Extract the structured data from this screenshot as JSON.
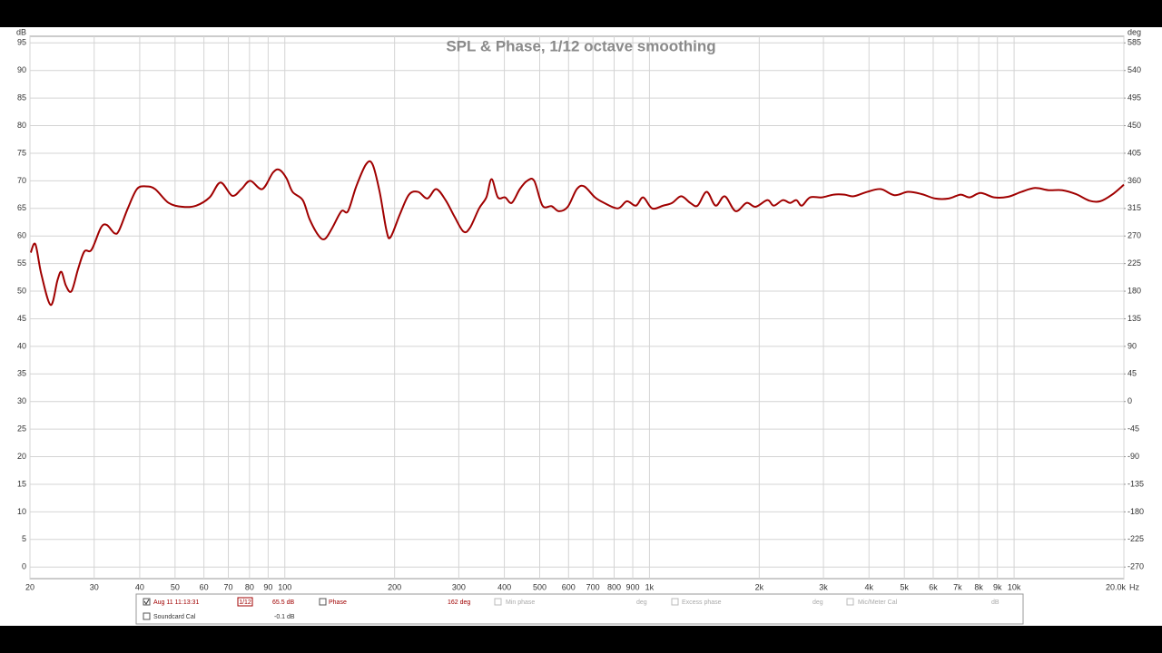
{
  "chart_data": {
    "type": "line",
    "title": "SPL & Phase, 1/12 octave smoothing",
    "y_label": "dB",
    "y2_label": "deg",
    "x_unit": "Hz",
    "log_x": true,
    "grid": true,
    "xlim": [
      20,
      20000
    ],
    "ylim": [
      -2.1,
      96.2
    ],
    "y2lim": [
      -288.9,
      595.8
    ],
    "xticks": [
      20,
      30,
      40,
      50,
      60,
      70,
      80,
      90,
      100,
      200,
      300,
      400,
      500,
      600,
      700,
      800,
      900,
      {
        "value": 1000,
        "label": "1k"
      },
      {
        "value": 2000,
        "label": "2k"
      },
      {
        "value": 3000,
        "label": "3k"
      },
      {
        "value": 4000,
        "label": "4k"
      },
      {
        "value": 5000,
        "label": "5k"
      },
      {
        "value": 6000,
        "label": "6k"
      },
      {
        "value": 7000,
        "label": "7k"
      },
      {
        "value": 8000,
        "label": "8k"
      },
      {
        "value": 9000,
        "label": "9k"
      },
      {
        "value": 10000,
        "label": "10k"
      },
      {
        "value": 20000,
        "label": "20.0k"
      }
    ],
    "yticks": [
      0,
      5,
      10,
      15,
      20,
      25,
      30,
      35,
      40,
      45,
      50,
      55,
      60,
      65,
      70,
      75,
      80,
      85,
      90,
      95
    ],
    "y2ticks": [
      -270,
      -225,
      -180,
      -135,
      -90,
      -45,
      0,
      45,
      90,
      135,
      180,
      225,
      270,
      315,
      360,
      405,
      450,
      495,
      540,
      585
    ],
    "x": [
      20.1,
      20.7,
      21.5,
      22.8,
      23.8,
      24.4,
      25.1,
      26.0,
      27.1,
      28.2,
      29.5,
      31.3,
      32.5,
      34.1,
      35.1,
      37.1,
      39.3,
      41.6,
      44.1,
      48.0,
      52.4,
      57.1,
      62.2,
      66.6,
      71.7,
      76.0,
      80.4,
      86.7,
      92.8,
      96.6,
      101,
      105,
      112,
      117,
      124,
      129,
      135,
      143,
      149,
      157,
      167,
      174,
      182,
      190,
      195,
      207,
      219,
      232,
      246,
      260,
      276,
      292,
      309,
      322,
      341,
      357,
      369,
      384,
      402,
      419,
      441,
      462,
      483,
      509,
      539,
      564,
      597,
      632,
      662,
      709,
      751,
      819,
      867,
      918,
      961,
      1017,
      1090,
      1154,
      1222,
      1294,
      1355,
      1435,
      1519,
      1609,
      1723,
      1846,
      1955,
      2106,
      2192,
      2321,
      2430,
      2529,
      2617,
      2756,
      2970,
      3199,
      3428,
      3630,
      3954,
      4309,
      4696,
      5118,
      5576,
      6076,
      6622,
      7133,
      7554,
      8091,
      8818,
      9608,
      10470,
      11410,
      12430,
      13550,
      14770,
      16090,
      17230,
      18570,
      20000
    ],
    "series": [
      {
        "name": "Aug 11 11:13:31",
        "color": "#a00000",
        "values": [
          57,
          58.5,
          53,
          47.5,
          52,
          53.5,
          51,
          50,
          54,
          57.2,
          57.5,
          61.5,
          62,
          60.5,
          61,
          65,
          68.5,
          69,
          68.5,
          66,
          65.3,
          65.5,
          67,
          69.7,
          67.3,
          68.5,
          70,
          68.5,
          71.5,
          72,
          70.5,
          68,
          66.5,
          63,
          60,
          59.5,
          61.5,
          64.5,
          64.5,
          69,
          73,
          73,
          68,
          61,
          59.8,
          64,
          67.5,
          68,
          66.8,
          68.5,
          66.5,
          63.5,
          60.8,
          61.5,
          65,
          67,
          70.3,
          67,
          67,
          66,
          68.5,
          70,
          70,
          65.5,
          65.4,
          64.5,
          65.3,
          68.5,
          69,
          67,
          66,
          65,
          66.3,
          65.5,
          67,
          65,
          65.5,
          66,
          67.2,
          66,
          65.5,
          68,
          65.5,
          67.2,
          64.5,
          66,
          65.3,
          66.5,
          65.5,
          66.5,
          66,
          66.5,
          65.5,
          67,
          67,
          67.5,
          67.5,
          67.2,
          68,
          68.5,
          67.4,
          68,
          67.6,
          66.8,
          66.8,
          67.5,
          67,
          67.8,
          67,
          67.1,
          68,
          68.7,
          68.3,
          68.3,
          67.6,
          66.4,
          66.3,
          67.5,
          69.3
        ]
      }
    ]
  },
  "panel": {
    "smoothing": "1/12",
    "spl_readout": "65.5 dB",
    "phase_label": "Phase",
    "phase_readout": "162 deg",
    "min_phase": "Min phase",
    "min_phase_unit": "deg",
    "excess_phase": "Excess phase",
    "excess_phase_unit": "deg",
    "mic_cal": "Mic/Meter Cal",
    "mic_cal_unit": "dB",
    "soundcard_cal": "Soundcard Cal",
    "soundcard_cal_readout": "-0.1 dB"
  }
}
